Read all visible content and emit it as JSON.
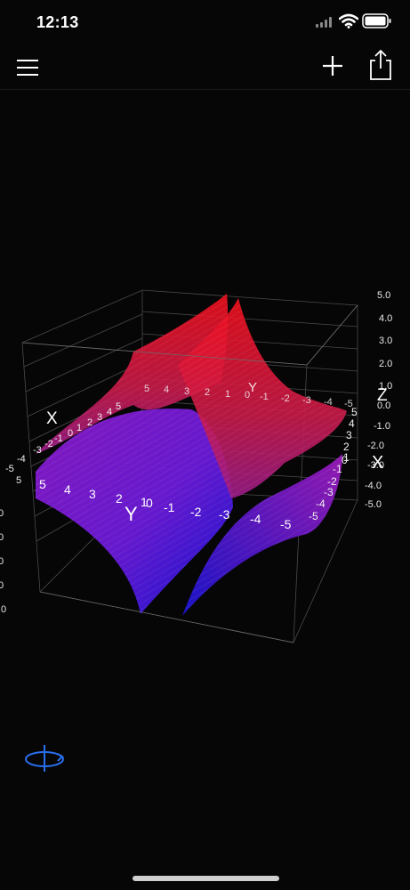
{
  "status_bar": {
    "time": "12:13"
  },
  "toolbar": {
    "menu_icon": "hamburger-menu-icon",
    "add_icon": "plus-icon",
    "share_icon": "share-icon"
  },
  "plot": {
    "axis_titles": {
      "x_back": "X",
      "y_back": "Y",
      "z": "Z",
      "x_right": "X",
      "y_front": "Y"
    },
    "z_ticks": [
      "5.0",
      "4.0",
      "3.0",
      "2.0",
      "1.0",
      "0.0",
      "-1.0",
      "-2.0",
      "-3.0",
      "-4.0",
      "-5.0"
    ],
    "left_z_ticks": [
      "0",
      "0",
      "0",
      "0",
      ".0"
    ],
    "y_front_ticks": [
      "5",
      "4",
      "3",
      "2",
      "1",
      "0",
      "-1",
      "-2",
      "-3",
      "-4",
      "-5"
    ],
    "y_back_ticks": [
      "5",
      "4",
      "3",
      "2",
      "1",
      "0",
      "-1",
      "-2",
      "-3",
      "-4",
      "-5"
    ],
    "x_back_ticks": [
      "-5",
      "-4",
      "-3",
      "-2",
      "-1",
      "0",
      "1",
      "2",
      "3",
      "4",
      "5"
    ],
    "x_right_ticks": [
      "5",
      "4",
      "3",
      "2",
      "1",
      "0",
      "-1",
      "-2",
      "-3",
      "-4",
      "-5"
    ],
    "colors": {
      "top_surface": "#e8101e",
      "mid_surface": "#7a18d0",
      "bottom_surface": "#1414d8",
      "grid": "#5a5a5a"
    }
  },
  "rotate_icon": "rotate-icon"
}
